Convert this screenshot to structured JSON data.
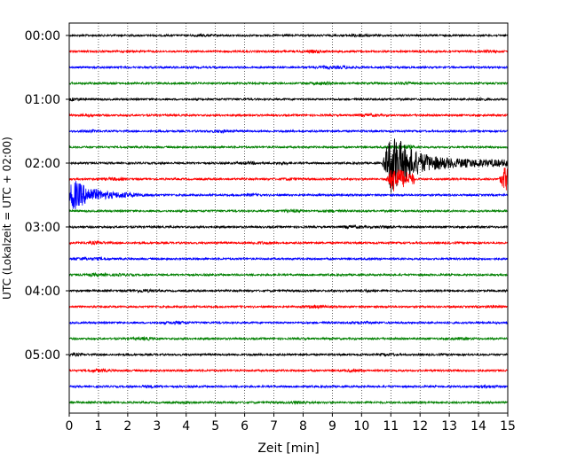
{
  "chart_data": {
    "type": "line",
    "subtype": "helicorder",
    "xlabel": "Zeit  [min]",
    "ylabel": "UTC (Lokalzeit = UTC + 02:00)",
    "xlim": [
      0,
      15
    ],
    "x_ticks": [
      "0",
      "1",
      "2",
      "3",
      "4",
      "5",
      "6",
      "7",
      "8",
      "9",
      "10",
      "11",
      "12",
      "13",
      "14",
      "15"
    ],
    "y_ticks": [
      "00:00",
      "01:00",
      "02:00",
      "03:00",
      "04:00",
      "05:00"
    ],
    "grid": "vertical dotted",
    "row_interval_minutes": 15,
    "row_colors": [
      "#000000",
      "#ff0000",
      "#0000ff",
      "#008000"
    ],
    "rows": [
      {
        "start": "00:00",
        "color": "#000000"
      },
      {
        "start": "00:15",
        "color": "#ff0000"
      },
      {
        "start": "00:30",
        "color": "#0000ff"
      },
      {
        "start": "00:45",
        "color": "#008000"
      },
      {
        "start": "01:00",
        "color": "#000000"
      },
      {
        "start": "01:15",
        "color": "#ff0000"
      },
      {
        "start": "01:30",
        "color": "#0000ff"
      },
      {
        "start": "01:45",
        "color": "#008000"
      },
      {
        "start": "02:00",
        "color": "#000000"
      },
      {
        "start": "02:15",
        "color": "#ff0000"
      },
      {
        "start": "02:30",
        "color": "#0000ff"
      },
      {
        "start": "02:45",
        "color": "#008000"
      },
      {
        "start": "03:00",
        "color": "#000000"
      },
      {
        "start": "03:15",
        "color": "#ff0000"
      },
      {
        "start": "03:30",
        "color": "#0000ff"
      },
      {
        "start": "03:45",
        "color": "#008000"
      },
      {
        "start": "04:00",
        "color": "#000000"
      },
      {
        "start": "04:15",
        "color": "#ff0000"
      },
      {
        "start": "04:30",
        "color": "#0000ff"
      },
      {
        "start": "04:45",
        "color": "#008000"
      },
      {
        "start": "05:00",
        "color": "#000000"
      },
      {
        "start": "05:15",
        "color": "#ff0000"
      },
      {
        "start": "05:30",
        "color": "#0000ff"
      },
      {
        "start": "05:45",
        "color": "#008000"
      }
    ],
    "events": [
      {
        "row": "02:00",
        "onset_min": 10.7,
        "peak_min": 11.0,
        "end_min": 15.0
      },
      {
        "row": "02:15",
        "onset_min": 10.8,
        "peak_min": 11.1,
        "end_min": 11.8
      },
      {
        "row": "02:15",
        "onset_min": 14.7,
        "peak_min": 14.9,
        "end_min": 15.0
      },
      {
        "row": "02:30",
        "onset_min": 0.0,
        "peak_min": 0.1,
        "end_min": 3.0
      }
    ]
  }
}
